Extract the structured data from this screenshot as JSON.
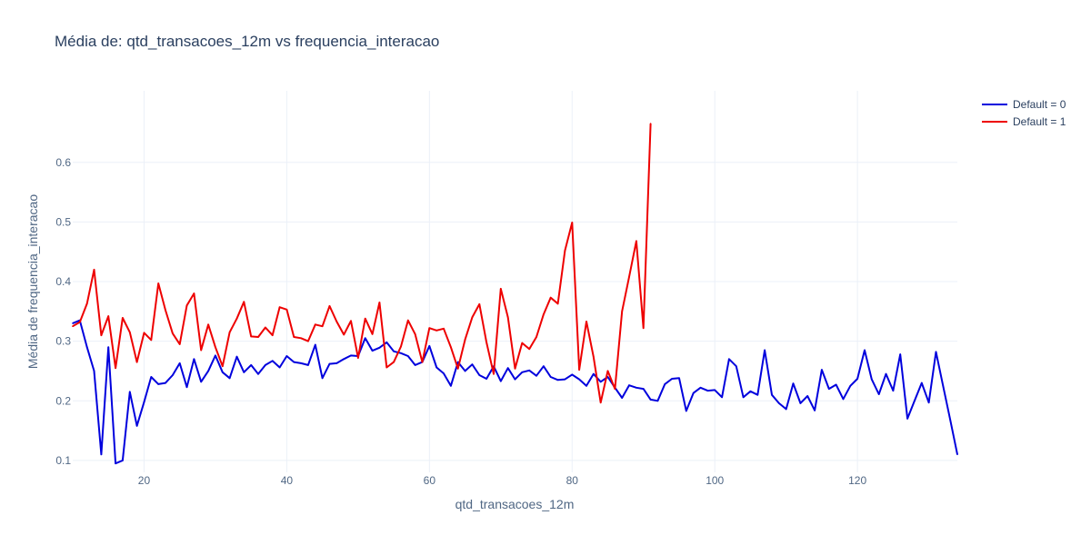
{
  "chart_data": {
    "type": "line",
    "title": "Média de: qtd_transacoes_12m vs frequencia_interacao",
    "xlabel": "qtd_transacoes_12m",
    "ylabel": "Média de frequencia_interacao",
    "xlim": [
      10,
      134
    ],
    "ylim": [
      0.08,
      0.72
    ],
    "xticks": [
      20,
      40,
      60,
      80,
      100,
      120
    ],
    "yticks": [
      0.1,
      0.2,
      0.3,
      0.4,
      0.5,
      0.6
    ],
    "grid": true,
    "legend_position": "top-right",
    "series": [
      {
        "name": "Default = 0",
        "color": "#0000dd",
        "x": [
          10,
          11,
          12,
          13,
          14,
          15,
          16,
          17,
          18,
          19,
          20,
          21,
          22,
          23,
          24,
          25,
          26,
          27,
          28,
          29,
          30,
          31,
          32,
          33,
          34,
          35,
          36,
          37,
          38,
          39,
          40,
          41,
          42,
          43,
          44,
          45,
          46,
          47,
          48,
          49,
          50,
          51,
          52,
          53,
          54,
          55,
          56,
          57,
          58,
          59,
          60,
          61,
          62,
          63,
          64,
          65,
          66,
          67,
          68,
          69,
          70,
          71,
          72,
          73,
          74,
          75,
          76,
          77,
          78,
          79,
          80,
          81,
          82,
          83,
          84,
          85,
          86,
          87,
          88,
          89,
          90,
          91,
          92,
          93,
          94,
          95,
          96,
          97,
          98,
          99,
          100,
          101,
          102,
          103,
          104,
          105,
          106,
          107,
          108,
          109,
          110,
          111,
          112,
          113,
          114,
          115,
          116,
          117,
          118,
          119,
          120,
          121,
          122,
          123,
          124,
          125,
          126,
          127,
          128,
          129,
          130,
          131,
          132,
          133,
          134
        ],
        "y": [
          0.33,
          0.335,
          0.29,
          0.25,
          0.11,
          0.29,
          0.095,
          0.1,
          0.215,
          0.158,
          0.198,
          0.24,
          0.228,
          0.23,
          0.243,
          0.263,
          0.223,
          0.27,
          0.232,
          0.25,
          0.276,
          0.248,
          0.238,
          0.274,
          0.248,
          0.26,
          0.245,
          0.26,
          0.267,
          0.256,
          0.275,
          0.265,
          0.263,
          0.26,
          0.294,
          0.238,
          0.262,
          0.263,
          0.27,
          0.276,
          0.275,
          0.305,
          0.284,
          0.289,
          0.298,
          0.283,
          0.28,
          0.275,
          0.26,
          0.265,
          0.292,
          0.256,
          0.246,
          0.225,
          0.265,
          0.25,
          0.261,
          0.243,
          0.237,
          0.258,
          0.233,
          0.255,
          0.236,
          0.248,
          0.251,
          0.242,
          0.258,
          0.24,
          0.235,
          0.236,
          0.244,
          0.236,
          0.225,
          0.245,
          0.232,
          0.24,
          0.222,
          0.205,
          0.226,
          0.222,
          0.22,
          0.202,
          0.2,
          0.228,
          0.237,
          0.238,
          0.183,
          0.213,
          0.222,
          0.217,
          0.218,
          0.206,
          0.27,
          0.258,
          0.206,
          0.216,
          0.21,
          0.285,
          0.21,
          0.196,
          0.186,
          0.229,
          0.196,
          0.208,
          0.184,
          0.252,
          0.22,
          0.227,
          0.203,
          0.225,
          0.237,
          0.285,
          0.236,
          0.211,
          0.245,
          0.217,
          0.278,
          0.17,
          0.2,
          0.23,
          0.197,
          0.282,
          0.225,
          0.168,
          0.11
        ]
      },
      {
        "name": "Default = 1",
        "color": "#ee0000",
        "x": [
          10,
          11,
          12,
          13,
          14,
          15,
          16,
          17,
          18,
          19,
          20,
          21,
          22,
          23,
          24,
          25,
          26,
          27,
          28,
          29,
          30,
          31,
          32,
          33,
          34,
          35,
          36,
          37,
          38,
          39,
          40,
          41,
          42,
          43,
          44,
          45,
          46,
          47,
          48,
          49,
          50,
          51,
          52,
          53,
          54,
          55,
          56,
          57,
          58,
          59,
          60,
          61,
          62,
          63,
          64,
          65,
          66,
          67,
          68,
          69,
          70,
          71,
          72,
          73,
          74,
          75,
          76,
          77,
          78,
          79,
          80,
          81,
          82,
          83,
          84,
          85,
          86,
          87,
          88,
          89,
          90,
          91
        ],
        "y": [
          0.325,
          0.332,
          0.363,
          0.42,
          0.31,
          0.342,
          0.255,
          0.339,
          0.315,
          0.265,
          0.314,
          0.302,
          0.397,
          0.352,
          0.313,
          0.295,
          0.36,
          0.38,
          0.285,
          0.328,
          0.29,
          0.258,
          0.315,
          0.338,
          0.366,
          0.308,
          0.307,
          0.323,
          0.31,
          0.357,
          0.353,
          0.307,
          0.305,
          0.3,
          0.328,
          0.325,
          0.359,
          0.333,
          0.311,
          0.334,
          0.272,
          0.338,
          0.312,
          0.365,
          0.256,
          0.265,
          0.291,
          0.335,
          0.312,
          0.265,
          0.322,
          0.318,
          0.321,
          0.29,
          0.254,
          0.303,
          0.34,
          0.362,
          0.298,
          0.245,
          0.388,
          0.34,
          0.254,
          0.297,
          0.287,
          0.307,
          0.345,
          0.373,
          0.363,
          0.452,
          0.499,
          0.252,
          0.333,
          0.274,
          0.197,
          0.25,
          0.22,
          0.35,
          0.408,
          0.468,
          0.322,
          0.665
        ]
      }
    ]
  }
}
